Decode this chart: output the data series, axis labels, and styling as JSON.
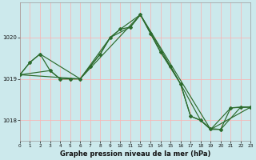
{
  "background_color": "#cce9ec",
  "grid_color": "#f5b8b8",
  "line_color": "#2d6b2d",
  "xlim": [
    0,
    23
  ],
  "ylim": [
    1017.5,
    1020.85
  ],
  "yticks": [
    1018,
    1019,
    1020
  ],
  "xticks": [
    0,
    1,
    2,
    3,
    4,
    5,
    6,
    7,
    8,
    9,
    10,
    11,
    12,
    13,
    14,
    15,
    16,
    17,
    18,
    19,
    20,
    21,
    22,
    23
  ],
  "xlabel": "Graphe pression niveau de la mer (hPa)",
  "s1_x": [
    0,
    1,
    2,
    3,
    4,
    5,
    6,
    7,
    8,
    9,
    10,
    11,
    12,
    13,
    14,
    15,
    16,
    17,
    18,
    19,
    20,
    21,
    22,
    23
  ],
  "s1_y": [
    1019.1,
    1019.4,
    1019.6,
    1019.2,
    1019.0,
    1019.0,
    1019.0,
    1019.3,
    1019.6,
    1020.0,
    1020.2,
    1020.25,
    1020.55,
    1020.1,
    1019.65,
    1019.3,
    1018.88,
    1018.1,
    1018.0,
    1017.8,
    1017.78,
    1018.3,
    1018.32,
    1018.32
  ],
  "s2_x": [
    0,
    1,
    2,
    6,
    9,
    11,
    12,
    14,
    16,
    17,
    18,
    19,
    21,
    23
  ],
  "s2_y": [
    1019.1,
    1019.4,
    1019.6,
    1019.0,
    1020.0,
    1020.25,
    1020.55,
    1019.65,
    1018.88,
    1018.1,
    1018.0,
    1017.78,
    1018.3,
    1018.32
  ],
  "s3_x": [
    0,
    3,
    4,
    5,
    6,
    8,
    9,
    10,
    12,
    15,
    16,
    18,
    19,
    20,
    22,
    23
  ],
  "s3_y": [
    1019.1,
    1019.2,
    1019.0,
    1019.0,
    1019.0,
    1019.6,
    1020.0,
    1020.2,
    1020.55,
    1019.3,
    1018.88,
    1018.0,
    1017.78,
    1017.78,
    1018.32,
    1018.32
  ],
  "s4_x": [
    0,
    6,
    12,
    19,
    23
  ],
  "s4_y": [
    1019.1,
    1019.0,
    1020.55,
    1017.78,
    1018.32
  ]
}
